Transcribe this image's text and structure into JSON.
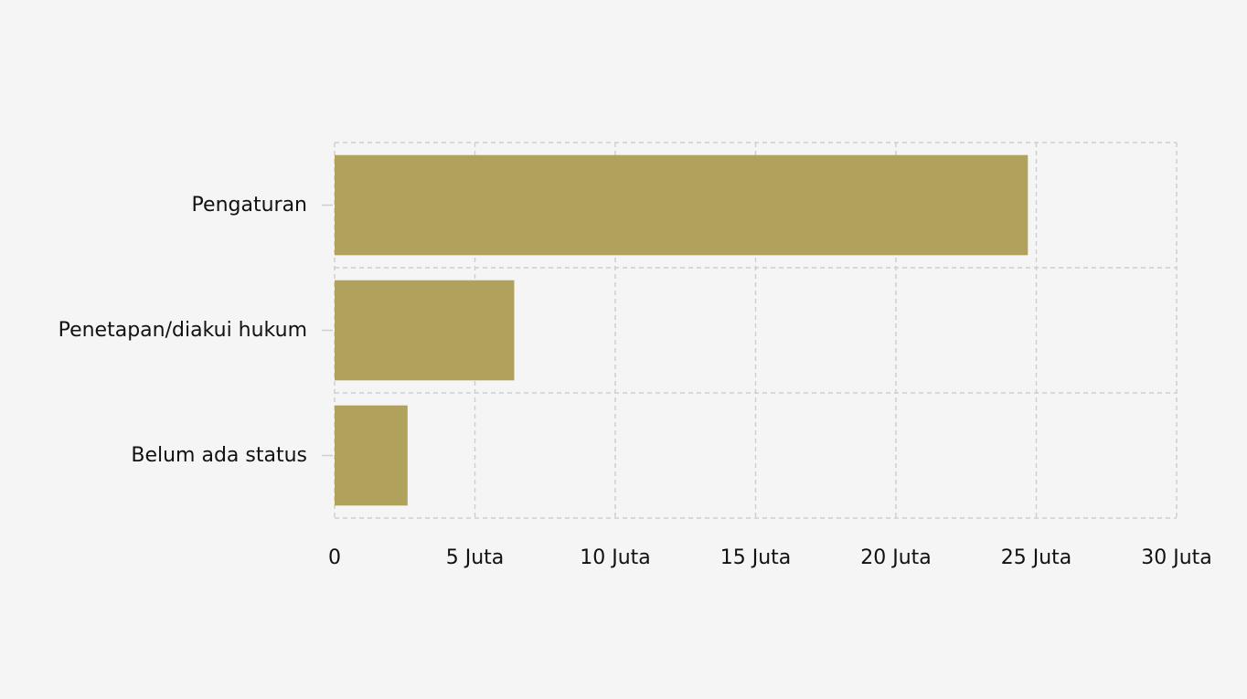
{
  "chart_data": {
    "type": "bar",
    "orientation": "horizontal",
    "title": "",
    "xlabel": "",
    "ylabel": "",
    "categories": [
      "Pengaturan",
      "Penetapan/diakui hukum",
      "Belum ada status"
    ],
    "values": [
      24700000,
      6400000,
      2600000
    ],
    "xlim": [
      0,
      30000000
    ],
    "x_ticks": [
      0,
      5000000,
      10000000,
      15000000,
      20000000,
      25000000,
      30000000
    ],
    "x_tick_labels": [
      "0",
      "5 Juta",
      "10 Juta",
      "15 Juta",
      "20 Juta",
      "25 Juta",
      "30 Juta"
    ],
    "grid": true,
    "legend": "none",
    "colors": {
      "bar": "#b0a25c",
      "background": "#f5f5f5",
      "grid": "#cfcfcf",
      "text": "#111111"
    }
  }
}
